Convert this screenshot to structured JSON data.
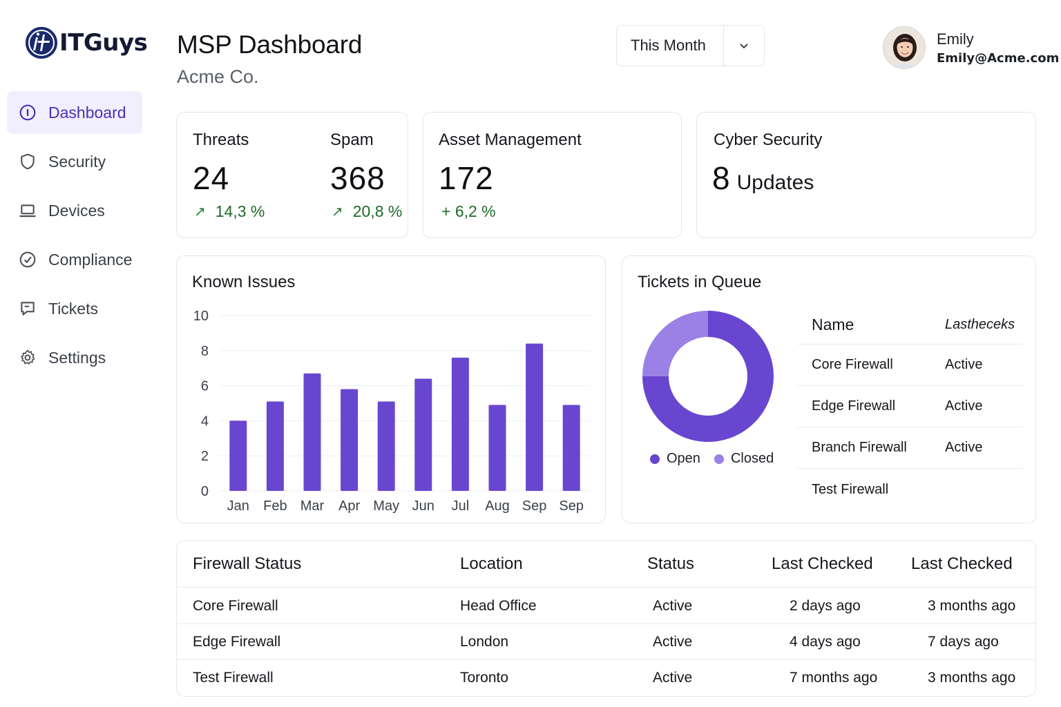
{
  "brand": {
    "name": "ITGuys",
    "logo_icon": "it-logo-icon",
    "color": "#1a2a6c"
  },
  "sidebar": {
    "items": [
      {
        "label": "Dashboard",
        "icon": "info-circle-icon",
        "active": true
      },
      {
        "label": "Security",
        "icon": "shield-icon",
        "active": false
      },
      {
        "label": "Devices",
        "icon": "laptop-icon",
        "active": false
      },
      {
        "label": "Compliance",
        "icon": "check-circle-icon",
        "active": false
      },
      {
        "label": "Tickets",
        "icon": "ticket-icon",
        "active": false
      },
      {
        "label": "Settings",
        "icon": "gear-icon",
        "active": false
      }
    ]
  },
  "header": {
    "title": "MSP Dashboard",
    "subtitle": "Acme Co.",
    "period": "This Month"
  },
  "user": {
    "name": "Emily",
    "email": "Emily@Acme.com"
  },
  "stats": {
    "threats": {
      "label": "Threats",
      "value": "24",
      "delta": "14,3 %",
      "icon": "arrow-up-right-icon"
    },
    "spam": {
      "label": "Spam",
      "value": "368",
      "delta": "20,8 %",
      "icon": "arrow-up-right-icon"
    },
    "assets": {
      "label": "Asset Management",
      "value": "172",
      "delta": "+ 6,2 %"
    },
    "cyber": {
      "label": "Cyber Security",
      "value": "8",
      "unit": "Updates"
    }
  },
  "known_issues": {
    "title": "Known Issues"
  },
  "chart_data": {
    "type": "bar",
    "categories": [
      "Jan",
      "Feb",
      "Mar",
      "Apr",
      "May",
      "Jun",
      "Jul",
      "Aug",
      "Sep",
      "Sep"
    ],
    "values": [
      4.0,
      5.1,
      6.7,
      5.8,
      5.1,
      6.4,
      7.6,
      4.9,
      8.4,
      4.9
    ],
    "ylim": [
      0,
      10
    ],
    "yticks": [
      "0",
      "2",
      "4",
      "6",
      "8",
      "10"
    ],
    "grid": true,
    "color": "#6946cf"
  },
  "tickets": {
    "title": "Tickets in Queue",
    "donut": [
      {
        "label": "Open",
        "share": 0.75,
        "color": "#6946cf"
      },
      {
        "label": "Closed",
        "share": 0.25,
        "color": "#9b80e6"
      }
    ],
    "columns": [
      "Name",
      "Lastheceks"
    ],
    "rows": [
      {
        "name": "Core Firewall",
        "status": "Active"
      },
      {
        "name": "Edge Firewall",
        "status": "Active"
      },
      {
        "name": "Branch Firewall",
        "status": "Active"
      },
      {
        "name": "Test Firewall",
        "status": ""
      }
    ]
  },
  "firewall": {
    "columns": [
      "Firewall Status",
      "Location",
      "Status",
      "Last Checked",
      "Last Checked"
    ],
    "rows": [
      [
        "Core Firewall",
        "Head Office",
        "Active",
        "2 days ago",
        "3 months ago"
      ],
      [
        "Edge Firewall",
        "London",
        "Active",
        "4 days ago",
        "7 days ago"
      ],
      [
        "Test Firewall",
        "Toronto",
        "Active",
        "7 months ago",
        "3 months ago"
      ]
    ]
  }
}
